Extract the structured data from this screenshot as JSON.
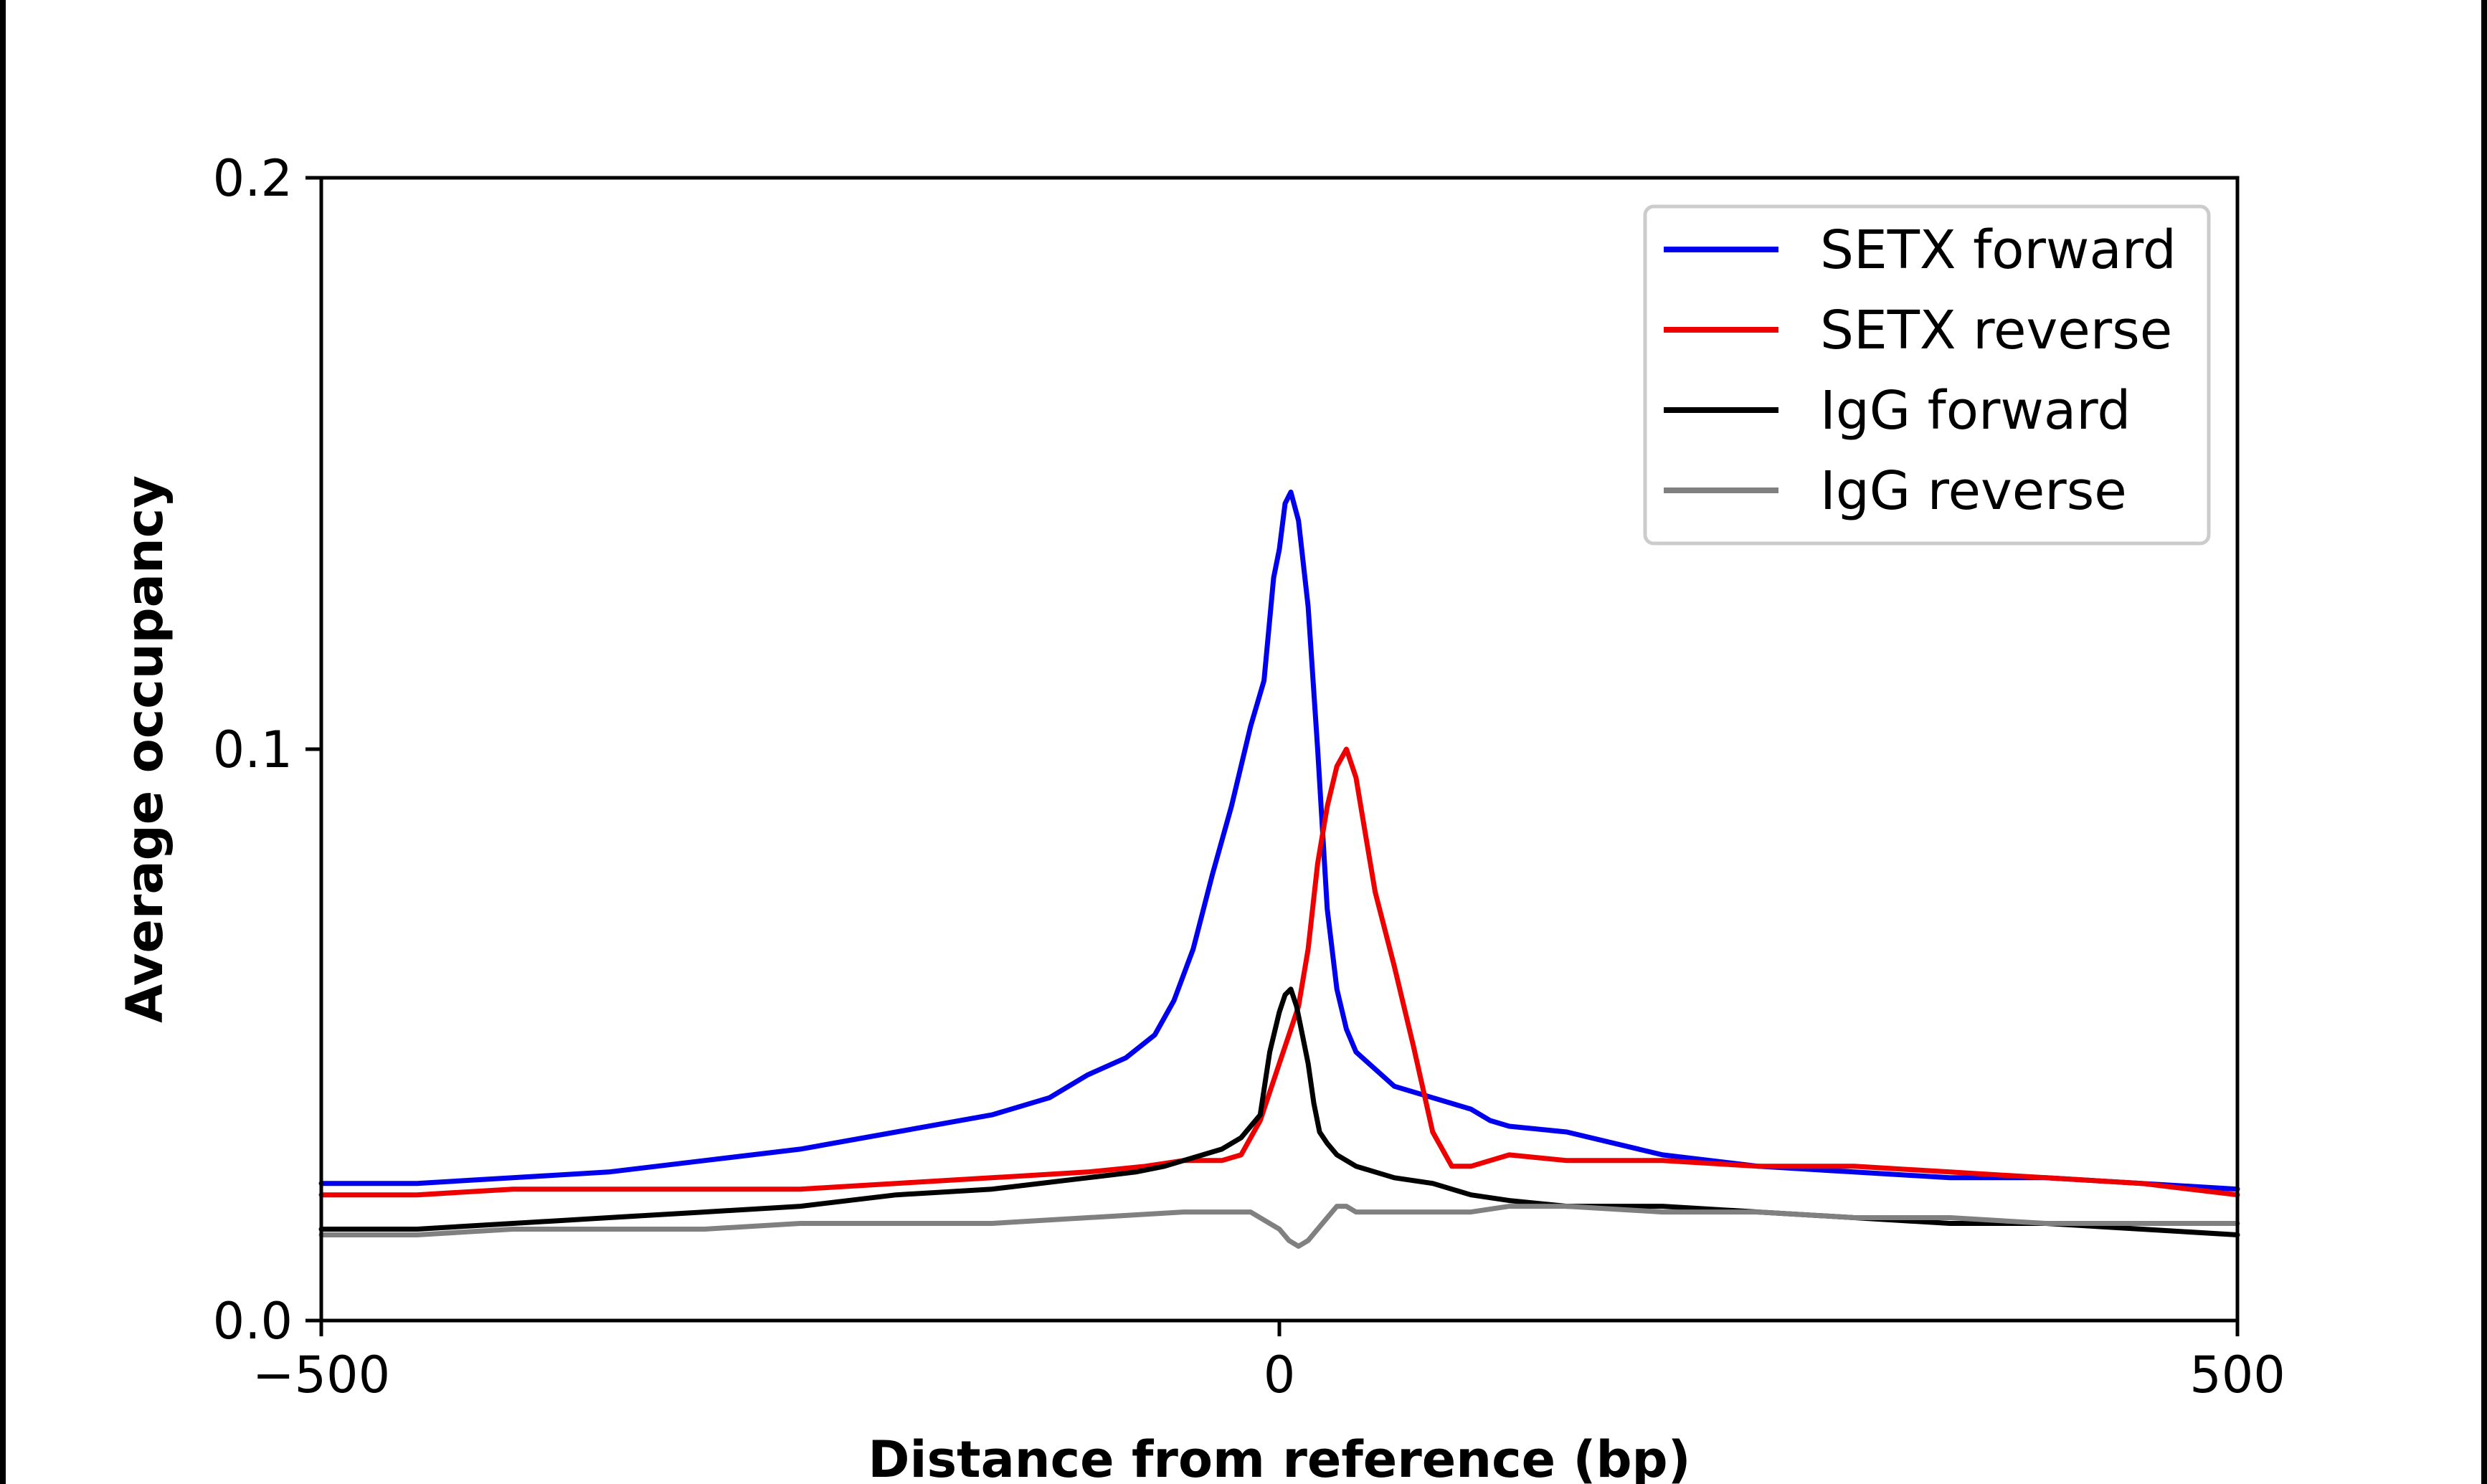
{
  "chart_data": {
    "type": "line",
    "title": "",
    "xlabel": "Distance from reference (bp)",
    "ylabel": "Average occupancy",
    "xlim": [
      -500,
      500
    ],
    "ylim": [
      0,
      0.2
    ],
    "xticks": [
      -500,
      0,
      500
    ],
    "xtick_labels": [
      "−500",
      "0",
      "500"
    ],
    "yticks": [
      0.0,
      0.1,
      0.2
    ],
    "ytick_labels": [
      "0.0",
      "0.1",
      "0.2"
    ],
    "grid": false,
    "legend_position": "top-right",
    "series": [
      {
        "name": "SETX forward",
        "color": "#0000ee",
        "x": [
          -500,
          -450,
          -400,
          -350,
          -300,
          -250,
          -200,
          -150,
          -120,
          -100,
          -80,
          -65,
          -55,
          -45,
          -35,
          -25,
          -15,
          -8,
          -3,
          0,
          3,
          6,
          10,
          15,
          20,
          25,
          30,
          35,
          40,
          50,
          60,
          80,
          100,
          110,
          120,
          150,
          200,
          250,
          300,
          350,
          400,
          450,
          500
        ],
        "values": [
          0.024,
          0.024,
          0.025,
          0.026,
          0.028,
          0.03,
          0.033,
          0.036,
          0.039,
          0.043,
          0.046,
          0.05,
          0.056,
          0.065,
          0.078,
          0.09,
          0.104,
          0.112,
          0.13,
          0.135,
          0.143,
          0.145,
          0.14,
          0.125,
          0.1,
          0.072,
          0.058,
          0.051,
          0.047,
          0.044,
          0.041,
          0.039,
          0.037,
          0.035,
          0.034,
          0.033,
          0.029,
          0.027,
          0.026,
          0.025,
          0.025,
          0.024,
          0.023
        ]
      },
      {
        "name": "SETX reverse",
        "color": "#ee0000",
        "x": [
          -500,
          -450,
          -400,
          -350,
          -300,
          -250,
          -200,
          -150,
          -100,
          -70,
          -50,
          -40,
          -30,
          -20,
          -10,
          0,
          5,
          10,
          15,
          20,
          25,
          30,
          35,
          40,
          45,
          50,
          60,
          70,
          80,
          90,
          100,
          110,
          120,
          150,
          200,
          250,
          300,
          350,
          400,
          450,
          500
        ],
        "values": [
          0.022,
          0.022,
          0.023,
          0.023,
          0.023,
          0.023,
          0.024,
          0.025,
          0.026,
          0.027,
          0.028,
          0.028,
          0.028,
          0.029,
          0.035,
          0.045,
          0.05,
          0.055,
          0.065,
          0.08,
          0.09,
          0.097,
          0.1,
          0.095,
          0.085,
          0.075,
          0.062,
          0.048,
          0.033,
          0.027,
          0.027,
          0.028,
          0.029,
          0.028,
          0.028,
          0.027,
          0.027,
          0.026,
          0.025,
          0.024,
          0.022
        ]
      },
      {
        "name": "IgG forward",
        "color": "#000000",
        "x": [
          -500,
          -450,
          -400,
          -350,
          -300,
          -250,
          -200,
          -150,
          -100,
          -75,
          -60,
          -50,
          -40,
          -30,
          -20,
          -10,
          -5,
          0,
          3,
          6,
          9,
          12,
          15,
          18,
          21,
          25,
          30,
          40,
          60,
          80,
          100,
          120,
          150,
          200,
          250,
          300,
          350,
          400,
          450,
          500
        ],
        "values": [
          0.016,
          0.016,
          0.017,
          0.018,
          0.019,
          0.02,
          0.022,
          0.023,
          0.025,
          0.026,
          0.027,
          0.028,
          0.029,
          0.03,
          0.032,
          0.036,
          0.047,
          0.054,
          0.057,
          0.058,
          0.055,
          0.05,
          0.045,
          0.038,
          0.033,
          0.031,
          0.029,
          0.027,
          0.025,
          0.024,
          0.022,
          0.021,
          0.02,
          0.02,
          0.019,
          0.018,
          0.017,
          0.017,
          0.016,
          0.015
        ]
      },
      {
        "name": "IgG reverse",
        "color": "#808080",
        "x": [
          -500,
          -450,
          -400,
          -350,
          -300,
          -250,
          -200,
          -150,
          -100,
          -50,
          -30,
          -15,
          0,
          5,
          10,
          15,
          20,
          25,
          30,
          35,
          40,
          50,
          70,
          100,
          120,
          150,
          200,
          250,
          300,
          350,
          400,
          450,
          500
        ],
        "values": [
          0.015,
          0.015,
          0.016,
          0.016,
          0.016,
          0.017,
          0.017,
          0.017,
          0.018,
          0.019,
          0.019,
          0.019,
          0.016,
          0.014,
          0.013,
          0.014,
          0.016,
          0.018,
          0.02,
          0.02,
          0.019,
          0.019,
          0.019,
          0.019,
          0.02,
          0.02,
          0.019,
          0.019,
          0.018,
          0.018,
          0.017,
          0.017,
          0.017
        ]
      }
    ]
  }
}
